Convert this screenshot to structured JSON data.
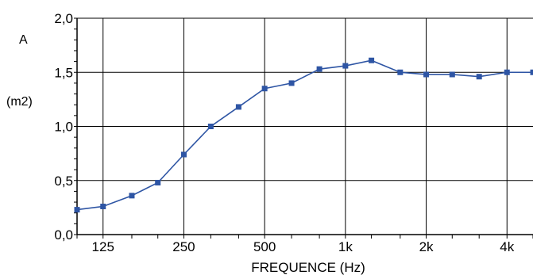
{
  "chart_data": {
    "type": "line",
    "title": "",
    "xlabel": "FREQUENCE (Hz)",
    "ylabel": "A",
    "yunit": "(m2)",
    "x_scale": "log",
    "xlim": [
      100,
      5000
    ],
    "ylim": [
      0,
      2
    ],
    "grid": true,
    "x_ticks": [
      {
        "value": 125,
        "label": "125"
      },
      {
        "value": 250,
        "label": "250"
      },
      {
        "value": 500,
        "label": "500"
      },
      {
        "value": 1000,
        "label": "1k"
      },
      {
        "value": 2000,
        "label": "2k"
      },
      {
        "value": 4000,
        "label": "4k"
      }
    ],
    "y_ticks": [
      {
        "value": 0,
        "label": "0,0"
      },
      {
        "value": 0.5,
        "label": "0,5"
      },
      {
        "value": 1.0,
        "label": "1,0"
      },
      {
        "value": 1.5,
        "label": "1,5"
      },
      {
        "value": 2.0,
        "label": "2,0"
      }
    ],
    "series": [
      {
        "color": "#2E55A4",
        "x": [
          100,
          125,
          160,
          200,
          250,
          315,
          400,
          500,
          630,
          800,
          1000,
          1250,
          1600,
          2000,
          2500,
          3150,
          4000,
          5000
        ],
        "values": [
          0.23,
          0.26,
          0.36,
          0.48,
          0.74,
          1.0,
          1.18,
          1.35,
          1.4,
          1.53,
          1.56,
          1.61,
          1.5,
          1.48,
          1.48,
          1.46,
          1.5,
          1.5
        ]
      }
    ]
  }
}
